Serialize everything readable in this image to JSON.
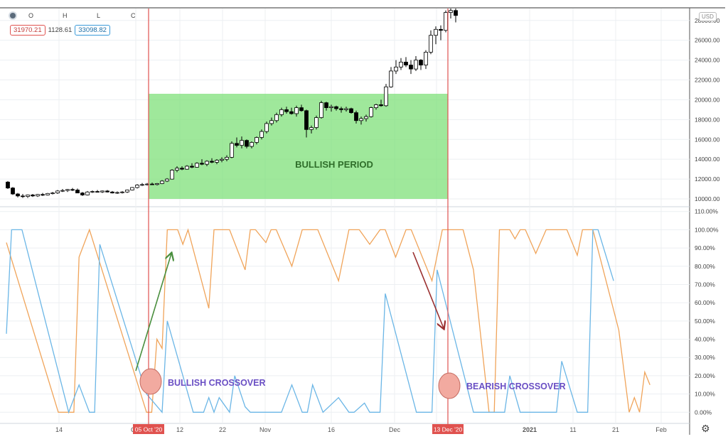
{
  "header": {
    "ohlc_labels": [
      "O",
      "H",
      "L",
      "C"
    ],
    "values": {
      "left": "31970.21",
      "middle": "1128.61",
      "right": "33098.82"
    },
    "currency": "USD"
  },
  "annotations": {
    "bullish_period": "BULLISH PERIOD",
    "bullish_crossover": "BULLISH CROSSOVER",
    "bearish_crossover": "BEARISH CROSSOVER",
    "bullish_date": "05 Oct '20",
    "bearish_date": "13 Dec '20"
  },
  "colors": {
    "candle": "#000000",
    "orange_line": "#f0a45a",
    "blue_line": "#6bb6e6",
    "bull_zone": "#7fe07a",
    "marker_line": "#e0524f",
    "marker_circle": "#f2aaa0",
    "green_arrow": "#4a8f3e",
    "red_arrow": "#9b3030",
    "annotation_text": "#6a4fc4",
    "period_text": "#2f6e2a"
  },
  "chart_data": [
    {
      "type": "candlestick",
      "ylim": [
        9500,
        29200
      ],
      "y_ticks": [
        10000,
        12000,
        14000,
        16000,
        18000,
        20000,
        22000,
        24000,
        26000,
        28000
      ],
      "y_tick_labels": [
        "10000.00",
        "12000.00",
        "14000.00",
        "16000.00",
        "18000.00",
        "20000.00",
        "22000.00",
        "24000.00",
        "26000.00",
        "28000.00"
      ],
      "x_labels": [
        "14",
        "Oct",
        "12",
        "22",
        "Nov",
        "16",
        "Dec",
        "2021",
        "11",
        "21",
        "Feb"
      ],
      "candles": [
        [
          11700,
          11800,
          11000,
          11100
        ],
        [
          11100,
          11200,
          10400,
          10500
        ],
        [
          10500,
          10600,
          10150,
          10300
        ],
        [
          10300,
          10500,
          10100,
          10250
        ],
        [
          10250,
          10450,
          10100,
          10400
        ],
        [
          10400,
          10500,
          10200,
          10300
        ],
        [
          10300,
          10500,
          10200,
          10450
        ],
        [
          10450,
          10600,
          10300,
          10400
        ],
        [
          10400,
          10600,
          10350,
          10550
        ],
        [
          10550,
          10700,
          10450,
          10600
        ],
        [
          10600,
          10900,
          10500,
          10800
        ],
        [
          10800,
          11000,
          10700,
          10850
        ],
        [
          10850,
          11000,
          10700,
          10950
        ],
        [
          10950,
          11100,
          10800,
          10900
        ],
        [
          10900,
          11050,
          10700,
          10600
        ],
        [
          10600,
          10700,
          10300,
          10400
        ],
        [
          10400,
          10800,
          10350,
          10700
        ],
        [
          10700,
          10850,
          10600,
          10750
        ],
        [
          10750,
          10900,
          10650,
          10700
        ],
        [
          10700,
          10850,
          10600,
          10800
        ],
        [
          10800,
          10900,
          10650,
          10700
        ],
        [
          10700,
          10800,
          10550,
          10600
        ],
        [
          10600,
          10750,
          10500,
          10650
        ],
        [
          10650,
          10800,
          10550,
          10700
        ],
        [
          10700,
          10950,
          10600,
          10900
        ],
        [
          10900,
          11200,
          10850,
          11150
        ],
        [
          11150,
          11500,
          11050,
          11400
        ],
        [
          11400,
          11600,
          11300,
          11450
        ],
        [
          11450,
          11600,
          11350,
          11500
        ],
        [
          11500,
          11650,
          11400,
          11450
        ],
        [
          11450,
          11600,
          11350,
          11550
        ],
        [
          11550,
          11900,
          11500,
          11800
        ],
        [
          11800,
          12100,
          11700,
          12000
        ],
        [
          12000,
          13000,
          11950,
          12900
        ],
        [
          12900,
          13300,
          12700,
          13100
        ],
        [
          13100,
          13300,
          12900,
          13000
        ],
        [
          13000,
          13400,
          12950,
          13300
        ],
        [
          13300,
          13600,
          13100,
          13200
        ],
        [
          13200,
          13700,
          13150,
          13600
        ],
        [
          13600,
          14000,
          13400,
          13500
        ],
        [
          13500,
          13900,
          13300,
          13800
        ],
        [
          13800,
          14100,
          13600,
          13700
        ],
        [
          13700,
          14000,
          13500,
          13900
        ],
        [
          13900,
          14200,
          13700,
          14000
        ],
        [
          14000,
          14400,
          13800,
          14200
        ],
        [
          14200,
          15800,
          14100,
          15600
        ],
        [
          15600,
          16200,
          15200,
          15400
        ],
        [
          15400,
          16300,
          15100,
          15900
        ],
        [
          15900,
          16000,
          15100,
          15300
        ],
        [
          15300,
          15800,
          15100,
          15700
        ],
        [
          15700,
          16300,
          15500,
          16200
        ],
        [
          16200,
          17000,
          16000,
          16800
        ],
        [
          16800,
          17800,
          16600,
          17600
        ],
        [
          17600,
          18200,
          17400,
          17900
        ],
        [
          17900,
          18700,
          17700,
          18500
        ],
        [
          18500,
          19200,
          18300,
          19000
        ],
        [
          19000,
          19300,
          18600,
          18800
        ],
        [
          18800,
          19200,
          18500,
          18600
        ],
        [
          18600,
          19400,
          18300,
          19200
        ],
        [
          19200,
          19500,
          18800,
          18900
        ],
        [
          18900,
          19000,
          16200,
          17000
        ],
        [
          17000,
          17400,
          16600,
          17200
        ],
        [
          17200,
          18400,
          17000,
          18200
        ],
        [
          18200,
          19900,
          18100,
          19700
        ],
        [
          19700,
          19800,
          18900,
          19200
        ],
        [
          19200,
          19500,
          18800,
          19300
        ],
        [
          19300,
          19400,
          18900,
          19100
        ],
        [
          19100,
          19300,
          18700,
          19000
        ],
        [
          19000,
          19300,
          18800,
          19100
        ],
        [
          19100,
          19200,
          18600,
          18700
        ],
        [
          18700,
          18900,
          17600,
          17900
        ],
        [
          17900,
          18300,
          17500,
          18100
        ],
        [
          18100,
          18500,
          17800,
          18300
        ],
        [
          18300,
          19300,
          18200,
          19200
        ],
        [
          19200,
          19600,
          19000,
          19500
        ],
        [
          19500,
          20000,
          19300,
          19400
        ],
        [
          19400,
          21600,
          19300,
          21300
        ],
        [
          21300,
          23300,
          21200,
          22900
        ],
        [
          22900,
          24000,
          22600,
          23300
        ],
        [
          23300,
          24200,
          23000,
          23800
        ],
        [
          23800,
          24300,
          23300,
          23500
        ],
        [
          23500,
          24000,
          22600,
          23100
        ],
        [
          23100,
          24400,
          22900,
          24000
        ],
        [
          24000,
          24100,
          23000,
          23500
        ],
        [
          23500,
          25000,
          23100,
          24800
        ],
        [
          24800,
          27000,
          24600,
          26500
        ],
        [
          26500,
          27400,
          25600,
          27100
        ],
        [
          27100,
          27500,
          26000,
          27000
        ],
        [
          27000,
          29000,
          26800,
          28800
        ],
        [
          28800,
          29200,
          28200,
          29000
        ],
        [
          29000,
          29200,
          27800,
          28500
        ]
      ]
    },
    {
      "type": "line",
      "ylim": [
        -3,
        113
      ],
      "y_ticks": [
        0,
        10,
        20,
        30,
        40,
        50,
        60,
        70,
        80,
        90,
        100,
        110
      ],
      "y_tick_labels": [
        "0.00%",
        "10.00%",
        "20.00%",
        "30.00%",
        "40.00%",
        "50.00%",
        "60.00%",
        "70.00%",
        "80.00%",
        "90.00%",
        "100.00%",
        "110.00%"
      ],
      "series": [
        {
          "color": "orange",
          "points": [
            [
              0,
              93
            ],
            [
              10,
              0
            ],
            [
              13,
              0
            ],
            [
              14,
              85
            ],
            [
              16,
              100
            ],
            [
              27,
              0
            ],
            [
              28,
              0
            ],
            [
              29,
              40
            ],
            [
              30,
              35
            ],
            [
              31,
              100
            ],
            [
              33,
              100
            ],
            [
              34,
              92
            ],
            [
              35,
              100
            ],
            [
              39,
              57
            ],
            [
              40,
              100
            ],
            [
              43,
              100
            ],
            [
              46,
              78
            ],
            [
              47,
              100
            ],
            [
              48,
              100
            ],
            [
              50,
              93
            ],
            [
              51,
              100
            ],
            [
              52,
              100
            ],
            [
              55,
              80
            ],
            [
              57,
              100
            ],
            [
              60,
              100
            ],
            [
              64,
              72
            ],
            [
              66,
              100
            ],
            [
              68,
              100
            ],
            [
              70,
              92
            ],
            [
              72,
              100
            ],
            [
              73,
              100
            ],
            [
              75,
              85
            ],
            [
              77,
              100
            ],
            [
              78,
              100
            ],
            [
              82,
              72
            ],
            [
              84,
              100
            ],
            [
              86,
              100
            ],
            [
              88,
              100
            ],
            [
              90,
              78
            ],
            [
              93,
              0
            ],
            [
              94,
              0
            ],
            [
              95,
              100
            ],
            [
              97,
              100
            ],
            [
              98,
              95
            ],
            [
              99,
              100
            ],
            [
              100,
              100
            ],
            [
              102,
              87
            ],
            [
              104,
              100
            ],
            [
              106,
              100
            ],
            [
              108,
              100
            ],
            [
              110,
              86
            ],
            [
              111,
              100
            ],
            [
              113,
              100
            ],
            [
              118,
              45
            ],
            [
              120,
              0
            ],
            [
              121,
              8
            ],
            [
              122,
              0
            ],
            [
              123,
              22
            ],
            [
              124,
              15
            ]
          ]
        },
        {
          "color": "blue",
          "points": [
            [
              0,
              43
            ],
            [
              1,
              100
            ],
            [
              3,
              100
            ],
            [
              12,
              0
            ],
            [
              14,
              15
            ],
            [
              16,
              0
            ],
            [
              17,
              0
            ],
            [
              18,
              92
            ],
            [
              27,
              10
            ],
            [
              30,
              0
            ],
            [
              31,
              50
            ],
            [
              36,
              0
            ],
            [
              38,
              0
            ],
            [
              39,
              8
            ],
            [
              40,
              0
            ],
            [
              41,
              8
            ],
            [
              43,
              0
            ],
            [
              44,
              20
            ],
            [
              46,
              3
            ],
            [
              47,
              0
            ],
            [
              53,
              0
            ],
            [
              55,
              15
            ],
            [
              57,
              0
            ],
            [
              58,
              0
            ],
            [
              59,
              15
            ],
            [
              61,
              0
            ],
            [
              64,
              8
            ],
            [
              66,
              0
            ],
            [
              67,
              0
            ],
            [
              69,
              5
            ],
            [
              70,
              0
            ],
            [
              72,
              0
            ],
            [
              73,
              65
            ],
            [
              79,
              0
            ],
            [
              82,
              0
            ],
            [
              83,
              78
            ],
            [
              90,
              0
            ],
            [
              96,
              0
            ],
            [
              97,
              20
            ],
            [
              99,
              0
            ],
            [
              106,
              0
            ],
            [
              107,
              28
            ],
            [
              110,
              0
            ],
            [
              112,
              0
            ],
            [
              113,
              100
            ],
            [
              114,
              100
            ],
            [
              117,
              72
            ]
          ]
        }
      ]
    }
  ]
}
